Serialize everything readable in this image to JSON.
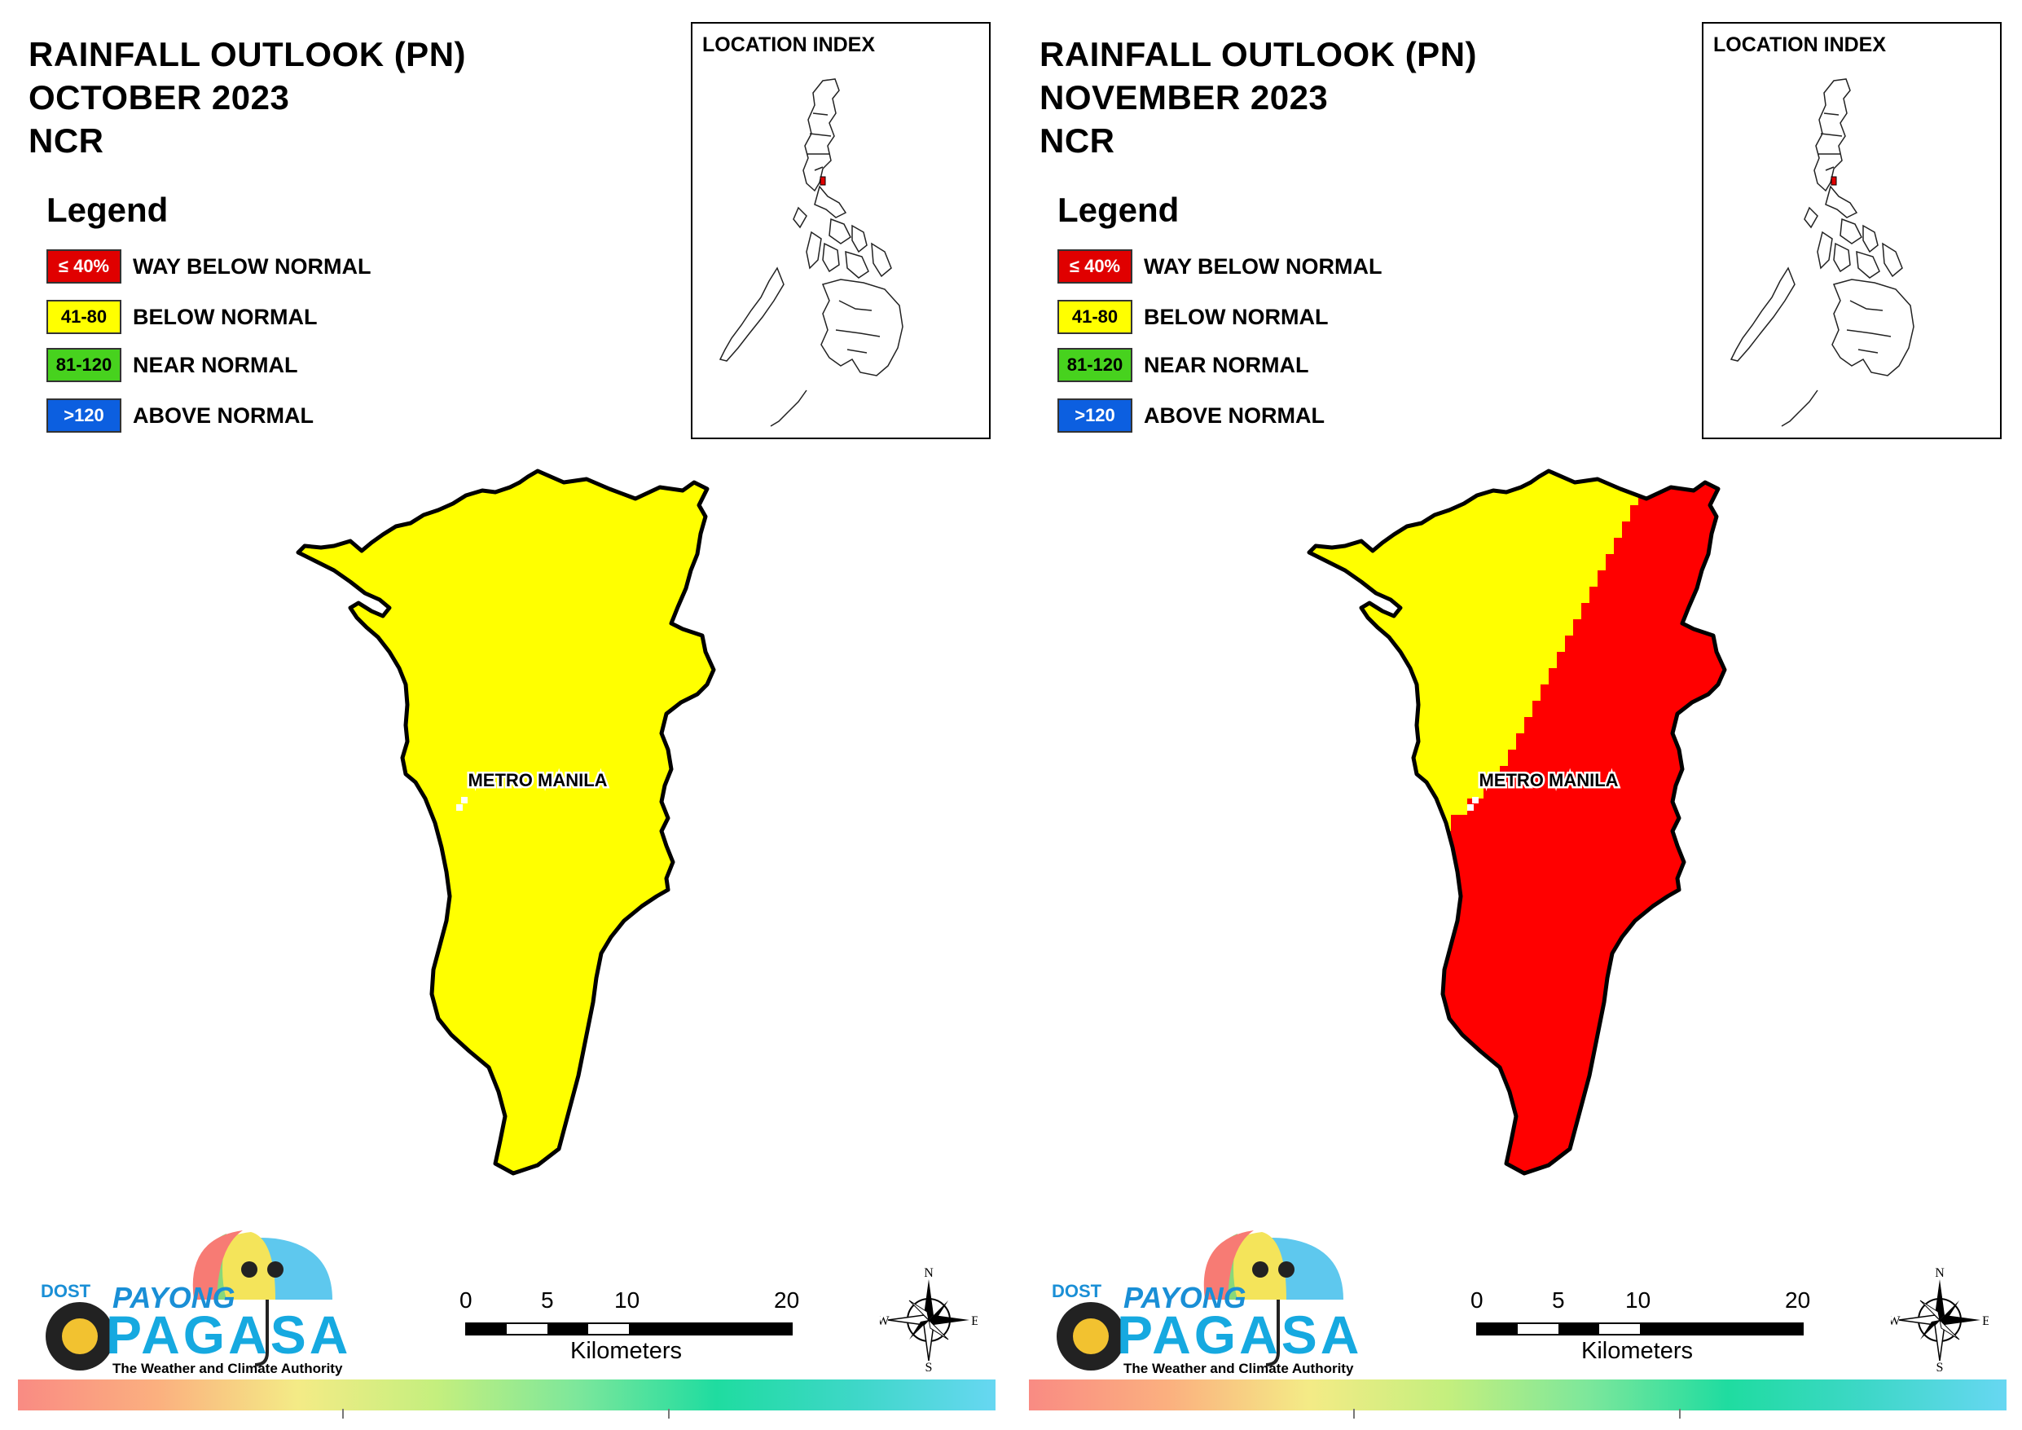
{
  "panels": [
    {
      "title_line1": "RAINFALL OUTLOOK (PN)",
      "title_line2": "OCTOBER 2023",
      "title_line3": "NCR",
      "region_label": "METRO MANILA",
      "fill": "yellow-only"
    },
    {
      "title_line1": "RAINFALL OUTLOOK (PN)",
      "title_line2": "NOVEMBER 2023",
      "title_line3": "NCR",
      "region_label": "METRO MANILA",
      "fill": "yellow-northwest-red-rest"
    }
  ],
  "legend": {
    "title": "Legend",
    "items": [
      {
        "swatch": "≤ 40%",
        "label": "WAY BELOW NORMAL",
        "color": "#e00000",
        "text_color": "#ffffff"
      },
      {
        "swatch": "41-80",
        "label": "BELOW NORMAL",
        "color": "#ffff00",
        "text_color": "#000000"
      },
      {
        "swatch": "81-120",
        "label": "NEAR NORMAL",
        "color": "#47d21e",
        "text_color": "#000000"
      },
      {
        "swatch": ">120",
        "label": "ABOVE NORMAL",
        "color": "#0c5fe0",
        "text_color": "#ffffff"
      }
    ]
  },
  "location_index": {
    "title": "LOCATION INDEX"
  },
  "scale": {
    "ticks": [
      "0",
      "5",
      "10",
      "20"
    ],
    "units": "Kilometers"
  },
  "compass": {
    "n": "N",
    "s": "S",
    "e": "E",
    "w": "W"
  },
  "logo": {
    "dost": "DOST",
    "payong": "PAYONG",
    "pagasa": "PAGASA",
    "tagline": "The Weather and Climate Authority"
  },
  "colors": {
    "yellow": "#ffff00",
    "red": "#ff0000"
  }
}
